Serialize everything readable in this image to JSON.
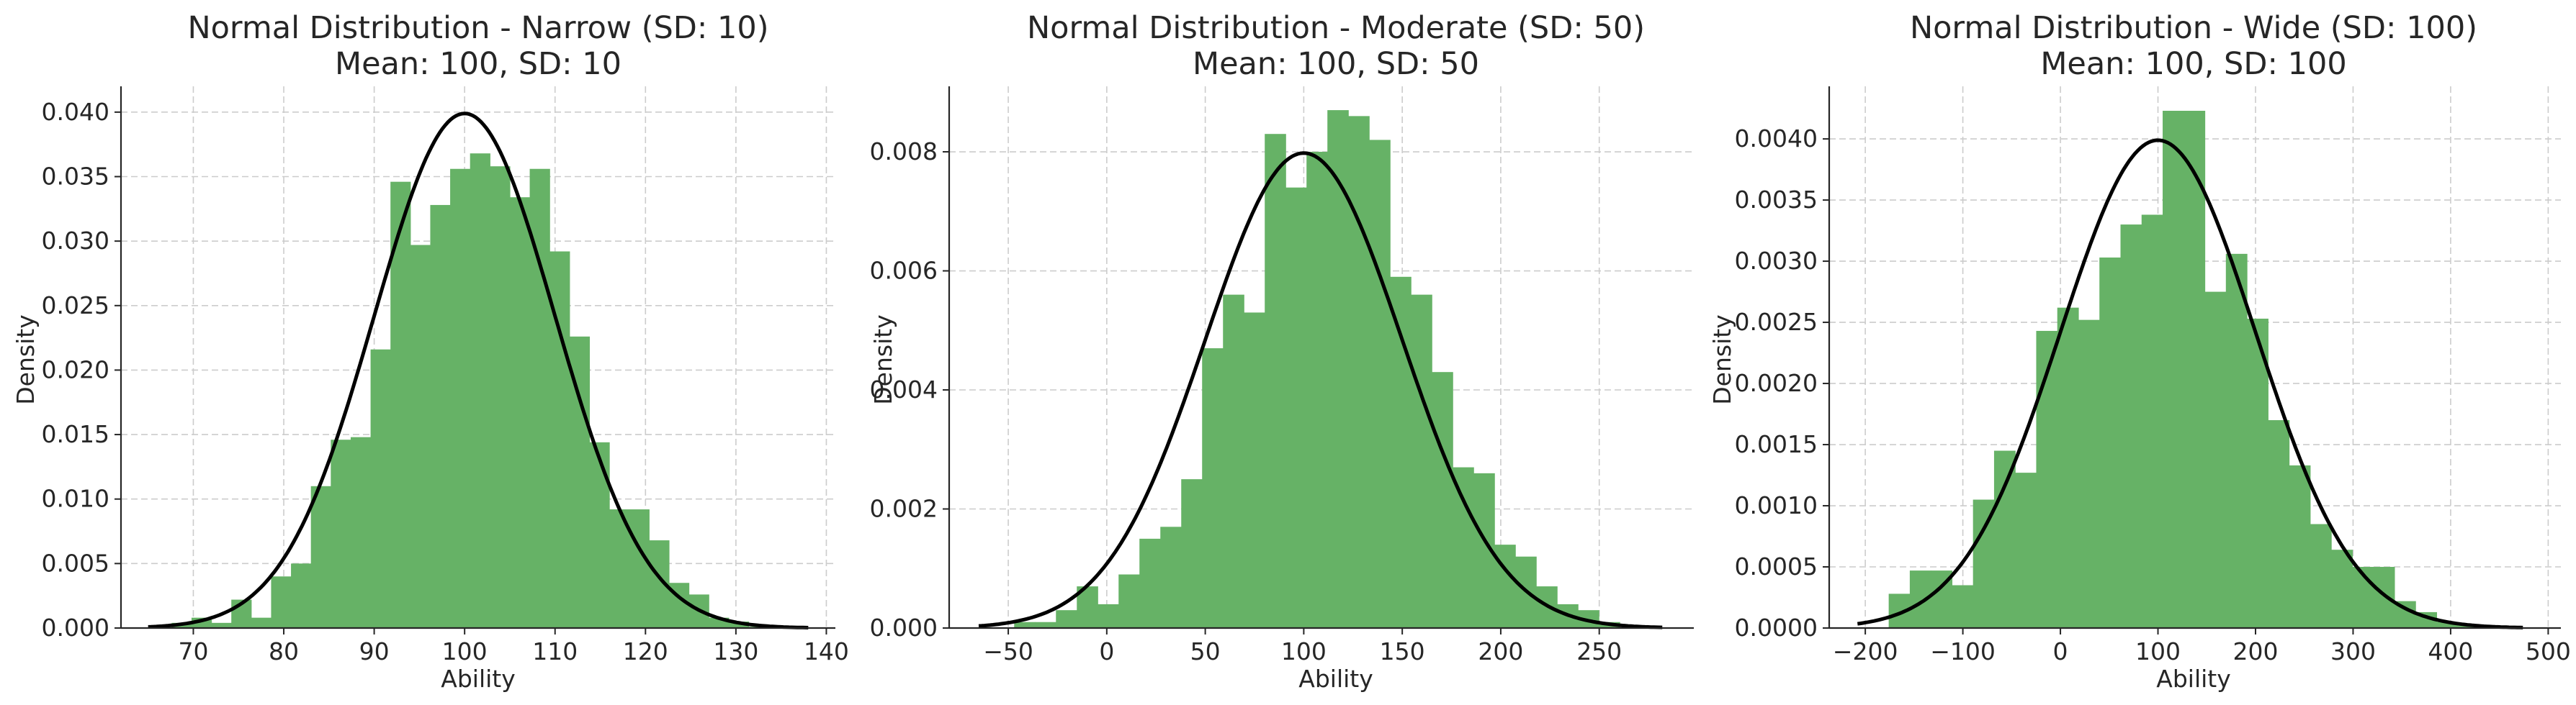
{
  "chart_data": [
    {
      "type": "bar",
      "title": "Normal Distribution - Narrow (SD: 10)",
      "subtitle": "Mean: 100, SD: 10",
      "xlabel": "Ability",
      "ylabel": "Density",
      "xlim": [
        62,
        141
      ],
      "ylim": [
        0,
        0.042
      ],
      "xticks": [
        70,
        80,
        90,
        100,
        110,
        120,
        130,
        140
      ],
      "yticks": [
        "0.000",
        "0.005",
        "0.010",
        "0.015",
        "0.020",
        "0.025",
        "0.030",
        "0.035",
        "0.040"
      ],
      "grid": true,
      "bars": {
        "start": 67.6,
        "width": 2.2,
        "values": [
          0.0004,
          0.0008,
          0.0004,
          0.0022,
          0.0008,
          0.004,
          0.005,
          0.011,
          0.0146,
          0.0148,
          0.0216,
          0.0346,
          0.0297,
          0.0328,
          0.0356,
          0.0368,
          0.0358,
          0.0334,
          0.0356,
          0.0292,
          0.0226,
          0.0144,
          0.0092,
          0.0092,
          0.0068,
          0.0035,
          0.0026,
          0.0008,
          0.0005,
          0.0001
        ]
      },
      "pdf": {
        "mean": 100,
        "sd": 10,
        "x_range": [
          65,
          138
        ]
      }
    },
    {
      "type": "bar",
      "title": "Normal Distribution - Moderate (SD: 50)",
      "subtitle": "Mean: 100, SD: 50",
      "xlabel": "Ability",
      "ylabel": "Density",
      "xlim": [
        -80,
        298
      ],
      "ylim": [
        0,
        0.0091
      ],
      "xticks": [
        -50,
        0,
        50,
        100,
        150,
        200,
        250
      ],
      "yticks": [
        "0.000",
        "0.002",
        "0.004",
        "0.006",
        "0.008"
      ],
      "grid": true,
      "bars": {
        "start": -47,
        "width": 10.6,
        "values": [
          0.0001,
          0.0001,
          0.0003,
          0.0007,
          0.0004,
          0.0009,
          0.0015,
          0.0017,
          0.0025,
          0.0047,
          0.0056,
          0.0053,
          0.0083,
          0.0074,
          0.008,
          0.0087,
          0.0086,
          0.0082,
          0.0059,
          0.0056,
          0.0043,
          0.0027,
          0.0026,
          0.0014,
          0.0012,
          0.0007,
          0.0004,
          0.0003,
          0.0001
        ]
      },
      "pdf": {
        "mean": 100,
        "sd": 50,
        "x_range": [
          -65,
          282
        ]
      }
    },
    {
      "type": "bar",
      "title": "Normal Distribution - Wide (SD: 100)",
      "subtitle": "Mean: 100, SD: 100",
      "xlabel": "Ability",
      "ylabel": "Density",
      "xlim": [
        -237,
        513
      ],
      "ylim": [
        0,
        0.00443
      ],
      "xticks": [
        -200,
        -100,
        0,
        100,
        200,
        300,
        400,
        500
      ],
      "yticks": [
        "0.0000",
        "0.0005",
        "0.0010",
        "0.0015",
        "0.0020",
        "0.0025",
        "0.0030",
        "0.0035",
        "0.0040"
      ],
      "grid": true,
      "bars": {
        "start": -176,
        "width": 21.6,
        "values": [
          0.00028,
          0.00047,
          0.00047,
          0.00035,
          0.00105,
          0.00145,
          0.00127,
          0.00243,
          0.00262,
          0.00252,
          0.00303,
          0.0033,
          0.00338,
          0.00423,
          0.00423,
          0.00275,
          0.00306,
          0.00253,
          0.0017,
          0.00133,
          0.00085,
          0.00064,
          0.0005,
          0.0005,
          0.00022,
          0.00013,
          5e-05,
          2e-05
        ]
      },
      "pdf": {
        "mean": 100,
        "sd": 100,
        "x_range": [
          -208,
          474
        ]
      }
    }
  ]
}
